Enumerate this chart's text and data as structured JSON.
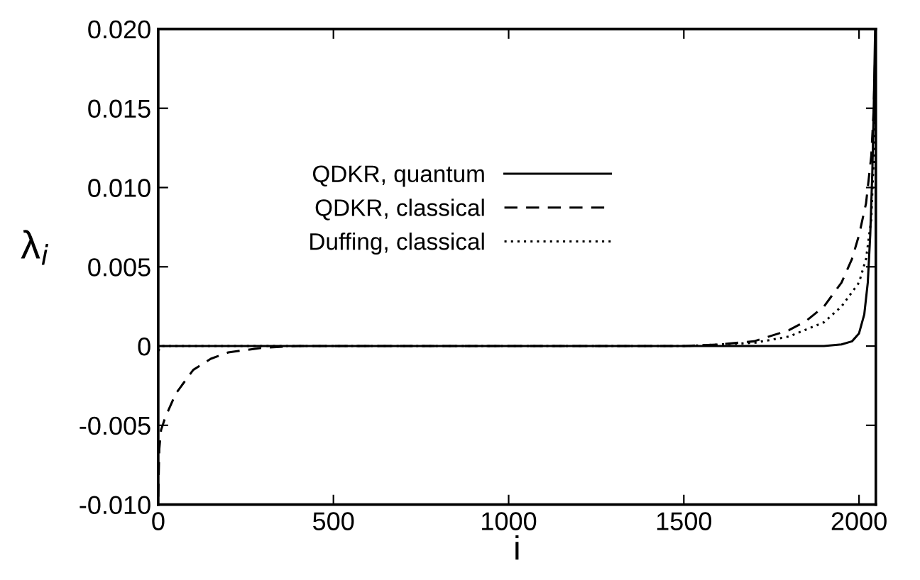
{
  "chart_data": {
    "type": "line",
    "xlabel": "i",
    "ylabel": "λ$_{i}$",
    "xlim": [
      0,
      2048
    ],
    "ylim": [
      -0.01,
      0.02
    ],
    "xticks": [
      0,
      500,
      1000,
      1500,
      2000
    ],
    "yticks": [
      {
        "value": -0.01,
        "label": "-0.010"
      },
      {
        "value": -0.005,
        "label": "-0.005"
      },
      0,
      {
        "value": 0.005,
        "label": "0.005"
      },
      {
        "value": 0.01,
        "label": "0.010"
      },
      {
        "value": 0.015,
        "label": "0.015"
      },
      {
        "value": 0.02,
        "label": "0.020"
      }
    ],
    "legend": "center",
    "grid": false,
    "series": [
      {
        "name": "QDKR, quantum",
        "color": "#000000",
        "line_style": "solid",
        "x": [
          0,
          500,
          1000,
          1500,
          1900,
          1950,
          1980,
          2000,
          2015,
          2025,
          2032,
          2038,
          2042,
          2046
        ],
        "values": [
          0,
          0,
          0,
          0,
          0,
          0.0001,
          0.0003,
          0.0008,
          0.002,
          0.004,
          0.007,
          0.011,
          0.015,
          0.02
        ]
      },
      {
        "name": "QDKR, classical",
        "color": "#000000",
        "line_style": "dashed",
        "x": [
          0,
          3,
          8,
          20,
          50,
          100,
          150,
          200,
          300,
          400,
          1000,
          1500,
          1600,
          1700,
          1800,
          1850,
          1900,
          1950,
          1980,
          2000,
          2020,
          2035,
          2042,
          2048
        ],
        "values": [
          -0.0095,
          -0.0065,
          -0.0053,
          -0.0045,
          -0.003,
          -0.0015,
          -0.0008,
          -0.0004,
          -0.0001,
          0,
          0,
          0,
          0.0001,
          0.0003,
          0.001,
          0.0016,
          0.0025,
          0.004,
          0.0055,
          0.007,
          0.009,
          0.012,
          0.015,
          0.02
        ]
      },
      {
        "name": "Duffing, classical",
        "color": "#000000",
        "line_style": "dotted",
        "x": [
          0,
          10,
          500,
          1000,
          1500,
          1600,
          1700,
          1800,
          1900,
          1950,
          2000,
          2020,
          2035,
          2042,
          2048
        ],
        "values": [
          -0.0003,
          0,
          0,
          0,
          0,
          0.0001,
          0.0002,
          0.0006,
          0.0015,
          0.0025,
          0.004,
          0.0055,
          0.008,
          0.012,
          0.02
        ]
      }
    ]
  }
}
